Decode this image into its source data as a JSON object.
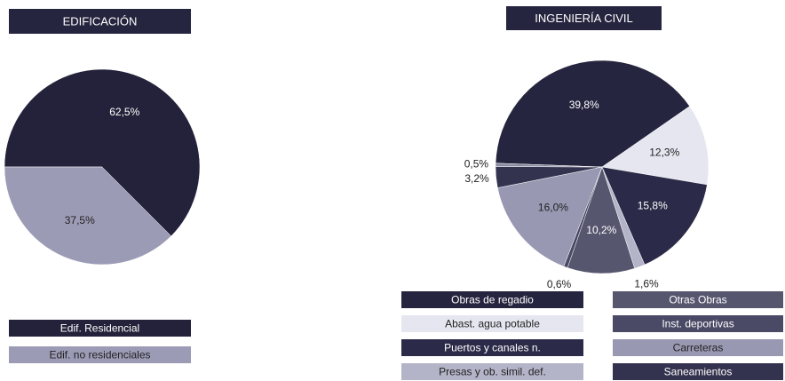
{
  "chart_data": [
    {
      "type": "pie",
      "title": "EDIFICACIÓN",
      "categories": [
        "Edif. Residencial",
        "Edif. no residenciales"
      ],
      "values": [
        62.5,
        37.5
      ],
      "value_labels": [
        "62,5%",
        "37,5%"
      ],
      "colors": [
        "#23223a",
        "#9c9bb6"
      ]
    },
    {
      "type": "pie",
      "title": "INGENIERÍA CIVIL",
      "categories": [
        "Obras de regadio",
        "Abast. agua potable",
        "Puertos y canales n.",
        "Presas y ob. simil. def.",
        "Otras Obras",
        "Inst. deportivas",
        "Carreteras",
        "Saneamientos",
        null
      ],
      "values": [
        39.8,
        12.3,
        15.8,
        1.6,
        10.2,
        0.6,
        16.0,
        3.2,
        0.5
      ],
      "value_labels": [
        "39,8%",
        "12,3%",
        "15,8%",
        "1,6%",
        "10,2%",
        "0,6%",
        "16,0%",
        "3,2%",
        "0,5%"
      ],
      "colors": [
        "#26253f",
        "#e6e6f0",
        "#2b2a48",
        "#b4b4c9",
        "#57566f",
        "#4a4966",
        "#9998b3",
        "#34334f",
        "#8a8aa0"
      ]
    }
  ]
}
